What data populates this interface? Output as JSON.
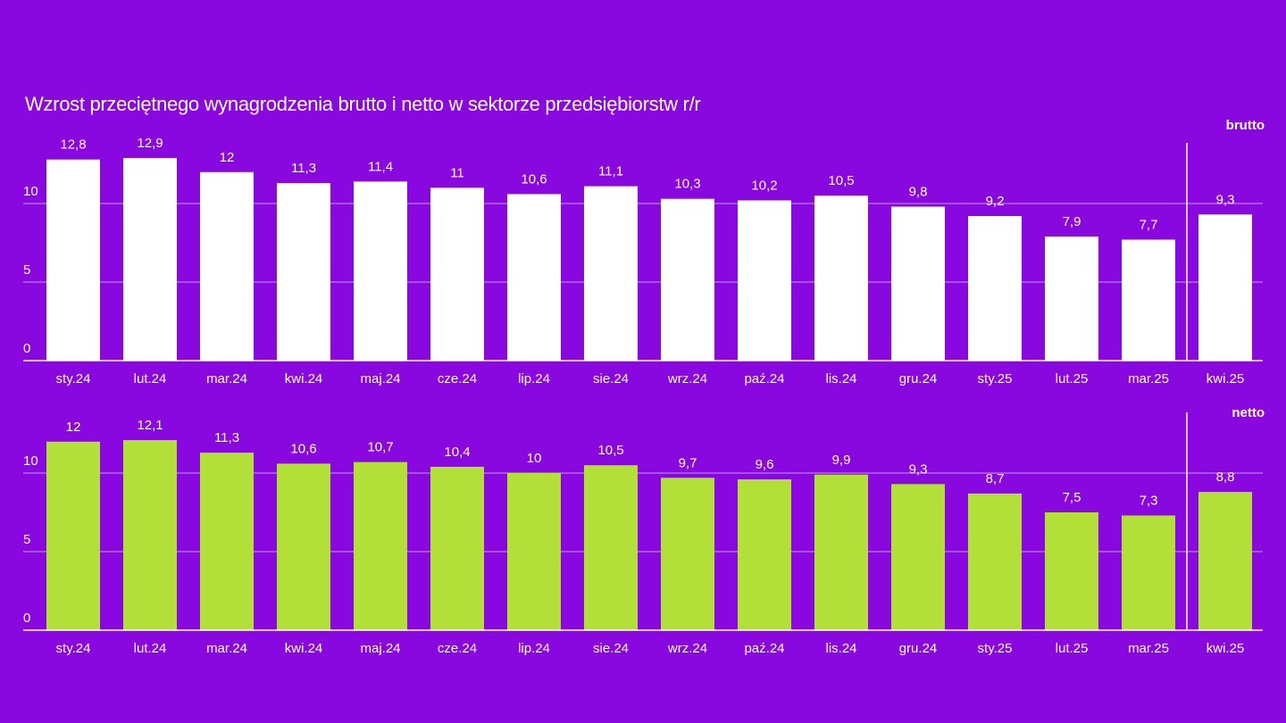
{
  "title": "Wzrost przeciętnego wynagrodzenia brutto i netto w sektorze przedsiębiorstw r/r",
  "colors": {
    "background": "#8a08e0",
    "brutto": "#ffffff",
    "netto": "#b2df38",
    "grid": "#c49af0"
  },
  "chart_data": [
    {
      "type": "bar",
      "name": "brutto",
      "series_label": "brutto",
      "categories": [
        "sty.24",
        "lut.24",
        "mar.24",
        "kwi.24",
        "maj.24",
        "cze.24",
        "lip.24",
        "sie.24",
        "wrz.24",
        "paź.24",
        "lis.24",
        "gru.24",
        "sty.25",
        "lut.25",
        "mar.25",
        "kwi.25"
      ],
      "values": [
        12.8,
        12.9,
        12.0,
        11.3,
        11.4,
        11.0,
        10.6,
        11.1,
        10.3,
        10.2,
        10.5,
        9.8,
        9.2,
        7.9,
        7.7,
        9.3
      ],
      "value_labels": [
        "12,8",
        "12,9",
        "12",
        "11,3",
        "11,4",
        "11",
        "10,6",
        "11,1",
        "10,3",
        "10,2",
        "10,5",
        "9,8",
        "9,2",
        "7,9",
        "7,7",
        "9,3"
      ],
      "yticks": [
        0,
        5,
        10
      ],
      "ylim": [
        0,
        14
      ],
      "separator_before": "kwi.25",
      "grid": true
    },
    {
      "type": "bar",
      "name": "netto",
      "series_label": "netto",
      "categories": [
        "sty.24",
        "lut.24",
        "mar.24",
        "kwi.24",
        "maj.24",
        "cze.24",
        "lip.24",
        "sie.24",
        "wrz.24",
        "paź.24",
        "lis.24",
        "gru.24",
        "sty.25",
        "lut.25",
        "mar.25",
        "kwi.25"
      ],
      "values": [
        12.0,
        12.1,
        11.3,
        10.6,
        10.7,
        10.4,
        10.0,
        10.5,
        9.7,
        9.6,
        9.9,
        9.3,
        8.7,
        7.5,
        7.3,
        8.8
      ],
      "value_labels": [
        "12",
        "12,1",
        "11,3",
        "10,6",
        "10,7",
        "10,4",
        "10",
        "10,5",
        "9,7",
        "9,6",
        "9,9",
        "9,3",
        "8,7",
        "7,5",
        "7,3",
        "8,8"
      ],
      "yticks": [
        0,
        5,
        10
      ],
      "ylim": [
        0,
        14
      ],
      "separator_before": "kwi.25",
      "grid": true
    }
  ]
}
